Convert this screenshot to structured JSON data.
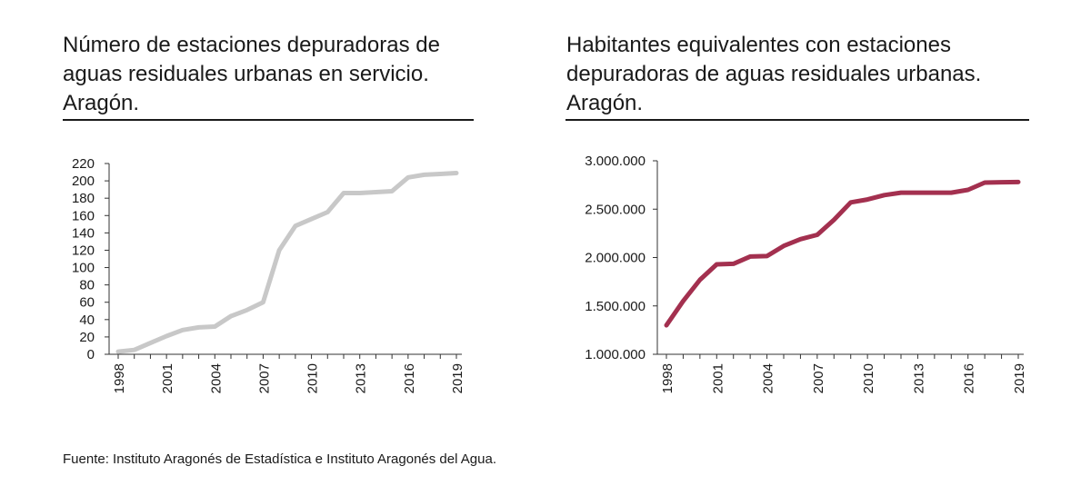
{
  "charts": [
    {
      "title": "Número de estaciones depuradoras de aguas residuales urbanas en servicio. Aragón.",
      "color": "#c8c8c8"
    },
    {
      "title": "Habitantes equivalentes con estaciones depuradoras de aguas residuales urbanas. Aragón.",
      "color": "#a3304f"
    }
  ],
  "source": "Fuente: Instituto Aragonés de Estadística e Instituto Aragonés del Agua.",
  "chart_data": [
    {
      "type": "line",
      "title": "Número de estaciones depuradoras de aguas residuales urbanas en servicio. Aragón.",
      "xlabel": "",
      "ylabel": "",
      "x": [
        1998,
        1999,
        2000,
        2001,
        2002,
        2003,
        2004,
        2005,
        2006,
        2007,
        2008,
        2009,
        2010,
        2011,
        2012,
        2013,
        2014,
        2015,
        2016,
        2017,
        2018,
        2019
      ],
      "values": [
        3,
        5,
        13,
        21,
        28,
        31,
        32,
        44,
        51,
        60,
        120,
        148,
        156,
        164,
        186,
        186,
        187,
        188,
        204,
        207,
        208,
        209
      ],
      "ylim": [
        0,
        220
      ],
      "yticks": [
        0,
        20,
        40,
        60,
        80,
        100,
        120,
        140,
        160,
        180,
        200,
        220
      ],
      "ytick_labels": [
        "0",
        "20",
        "40",
        "60",
        "80",
        "100",
        "120",
        "140",
        "160",
        "180",
        "200",
        "220"
      ],
      "xticks": [
        1998,
        2001,
        2004,
        2007,
        2010,
        2013,
        2016,
        2019
      ],
      "xtick_labels": [
        "1998",
        "2001",
        "2004",
        "2007",
        "2010",
        "2013",
        "2016",
        "2019"
      ],
      "grid": false,
      "legend": "none"
    },
    {
      "type": "line",
      "title": "Habitantes equivalentes con estaciones depuradoras de aguas residuales urbanas. Aragón.",
      "xlabel": "",
      "ylabel": "",
      "x": [
        1998,
        1999,
        2000,
        2001,
        2002,
        2003,
        2004,
        2005,
        2006,
        2007,
        2008,
        2009,
        2010,
        2011,
        2012,
        2013,
        2014,
        2015,
        2016,
        2017,
        2018,
        2019
      ],
      "values": [
        1300000,
        1550000,
        1770000,
        1930000,
        1935000,
        2010000,
        2015000,
        2120000,
        2190000,
        2235000,
        2390000,
        2570000,
        2600000,
        2645000,
        2670000,
        2670000,
        2670000,
        2670000,
        2700000,
        2775000,
        2778000,
        2780000
      ],
      "ylim": [
        1000000,
        3000000
      ],
      "yticks": [
        1000000,
        1500000,
        2000000,
        2500000,
        3000000
      ],
      "ytick_labels": [
        "1.000.000",
        "1.500.000",
        "2.000.000",
        "2.500.000",
        "3.000.000"
      ],
      "xticks": [
        1998,
        2001,
        2004,
        2007,
        2010,
        2013,
        2016,
        2019
      ],
      "xtick_labels": [
        "1998",
        "2001",
        "2004",
        "2007",
        "2010",
        "2013",
        "2016",
        "2019"
      ],
      "grid": false,
      "legend": "none"
    }
  ]
}
